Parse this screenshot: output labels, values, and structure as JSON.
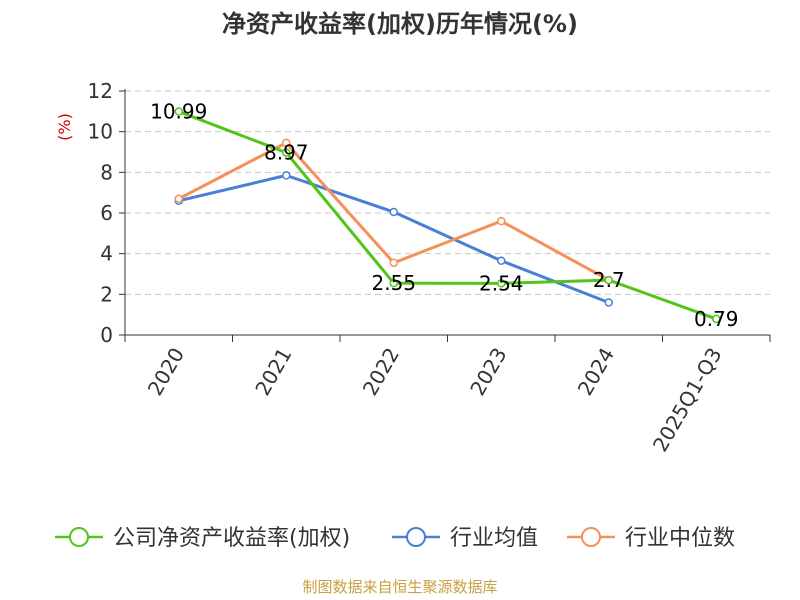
{
  "chart_data": {
    "type": "line",
    "title": "净资产收益率(加权)历年情况(%)",
    "ylabel": "(%)",
    "xlabel": "",
    "categories": [
      "2020",
      "2021",
      "2022",
      "2023",
      "2024",
      "2025Q1-Q3"
    ],
    "ylim": [
      0,
      12
    ],
    "yticks": [
      0,
      2,
      4,
      6,
      8,
      10,
      12
    ],
    "grid": true,
    "legend_position": "bottom",
    "series": [
      {
        "name": "公司净资产收益率(加权)",
        "color": "#52c41a",
        "values": [
          10.99,
          8.97,
          2.55,
          2.54,
          2.7,
          0.79
        ],
        "labels": [
          "10.99",
          "8.97",
          "2.55",
          "2.54",
          "2.7",
          "0.79"
        ]
      },
      {
        "name": "行业均值",
        "color": "#4a7fd8",
        "values": [
          6.6,
          7.85,
          6.05,
          3.65,
          1.6,
          null
        ]
      },
      {
        "name": "行业中位数",
        "color": "#f5905a",
        "values": [
          6.7,
          9.45,
          3.55,
          5.6,
          2.7,
          null
        ]
      }
    ]
  },
  "footer": {
    "source": "制图数据来自恒生聚源数据库"
  }
}
